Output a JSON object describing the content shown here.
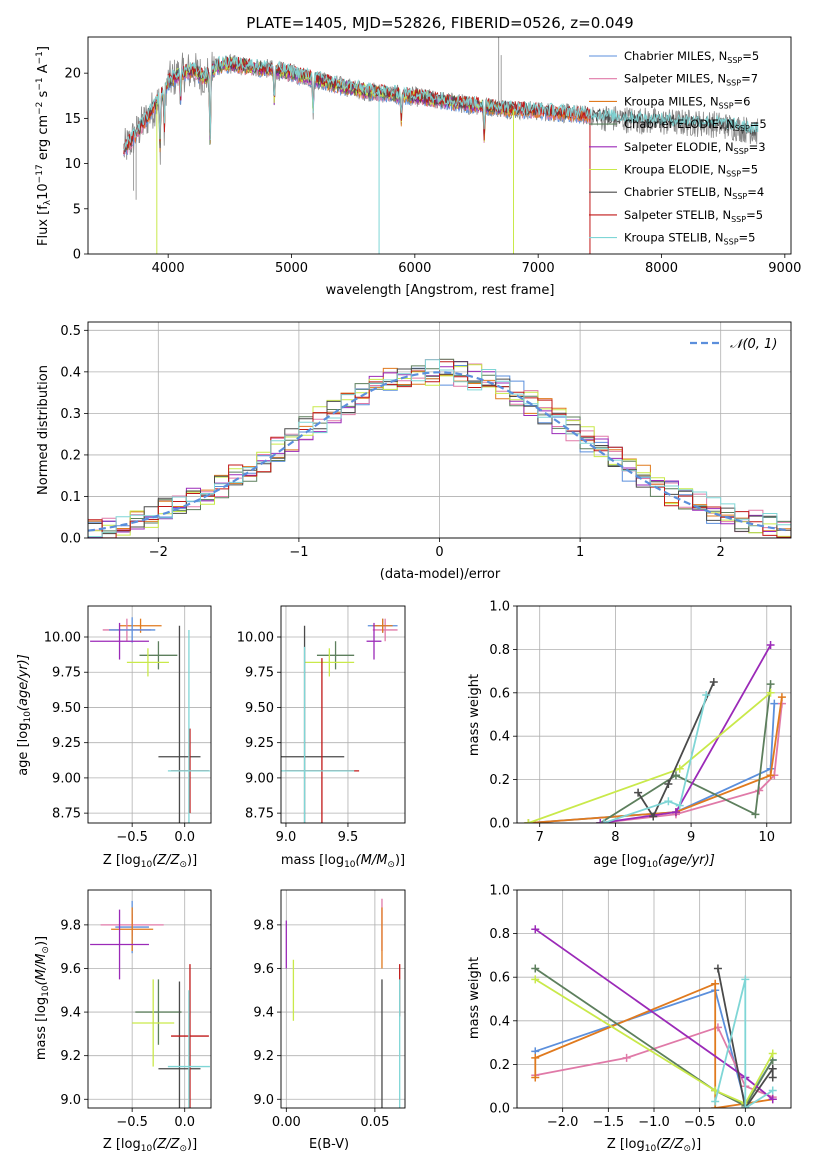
{
  "colors": {
    "chabrier_miles": "#5b8fdc",
    "salpeter_miles": "#e07aa8",
    "kroupa_miles": "#e07a1e",
    "chabrier_elodie": "#5d7f5d",
    "salpeter_elodie": "#9b2ab8",
    "kroupa_elodie": "#c9e94a",
    "chabrier_stelib": "#4a4a4a",
    "salpeter_stelib": "#c01818",
    "kroupa_stelib": "#7fd6d6",
    "data": "#888888",
    "gauss": "#5b8fdc"
  },
  "chart_data": [
    {
      "id": "spectrum",
      "type": "line",
      "title": "PLATE=1405, MJD=52826, FIBERID=0526, z=0.049",
      "xlabel": "wavelength [Angstrom, rest frame]",
      "ylabel_main": "Flux [f",
      "ylabel_sub1": "λ",
      "ylabel_mid": "10",
      "ylabel_sup1": "−17",
      "ylabel_mid2": " erg cm",
      "ylabel_sup2": "−2",
      "ylabel_mid3": " s",
      "ylabel_sup3": "−1",
      "ylabel_mid4": " A",
      "ylabel_sup4": "−1",
      "ylabel_end": "]",
      "xlim": [
        3350,
        9050
      ],
      "ylim": [
        0,
        24
      ],
      "xticks": [
        "4000",
        "5000",
        "6000",
        "7000",
        "8000",
        "9000"
      ],
      "xtick_values": [
        4000,
        5000,
        6000,
        7000,
        8000,
        9000
      ],
      "yticks": [
        "0",
        "5",
        "10",
        "15",
        "20"
      ],
      "ytick_values": [
        0,
        5,
        10,
        15,
        20
      ],
      "continuum": {
        "x": [
          3640,
          3700,
          3800,
          3900,
          4000,
          4100,
          4200,
          4300,
          4400,
          4500,
          4600,
          4800,
          5000,
          5200,
          5400,
          5600,
          5800,
          6000,
          6200,
          6400,
          6600,
          6800,
          7000,
          7200,
          7400,
          7600,
          7800,
          8000,
          8200,
          8400,
          8600,
          8780
        ],
        "y": [
          11.5,
          12.5,
          14.5,
          16.5,
          19.0,
          20.0,
          20.3,
          19.5,
          20.8,
          21.0,
          20.8,
          20.5,
          20.0,
          19.3,
          18.6,
          18.0,
          17.7,
          17.4,
          17.0,
          16.6,
          16.3,
          16.0,
          15.8,
          15.6,
          15.3,
          15.0,
          14.8,
          14.6,
          14.5,
          14.4,
          14.0,
          13.5
        ]
      },
      "legend": [
        {
          "text": "Chabrier MILES, N",
          "sub": "SSP",
          "tail": "=5",
          "color_key": "chabrier_miles"
        },
        {
          "text": "Salpeter MILES, N",
          "sub": "SSP",
          "tail": "=7",
          "color_key": "salpeter_miles"
        },
        {
          "text": "Kroupa MILES, N",
          "sub": "SSP",
          "tail": "=6",
          "color_key": "kroupa_miles"
        },
        {
          "text": "Chabrier ELODIE, N",
          "sub": "SSP",
          "tail": "=5",
          "color_key": "chabrier_elodie"
        },
        {
          "text": "Salpeter ELODIE, N",
          "sub": "SSP",
          "tail": "=3",
          "color_key": "salpeter_elodie"
        },
        {
          "text": "Kroupa ELODIE, N",
          "sub": "SSP",
          "tail": "=5",
          "color_key": "kroupa_elodie"
        },
        {
          "text": "Chabrier STELIB, N",
          "sub": "SSP",
          "tail": "=4",
          "color_key": "chabrier_stelib"
        },
        {
          "text": "Salpeter STELIB, N",
          "sub": "SSP",
          "tail": "=5",
          "color_key": "salpeter_stelib"
        },
        {
          "text": "Kroupa STELIB, N",
          "sub": "SSP",
          "tail": "=5",
          "color_key": "kroupa_stelib"
        }
      ]
    },
    {
      "id": "residuals",
      "type": "bar",
      "xlabel": "(data-model)/error",
      "ylabel": "Normed distribution",
      "xlim": [
        -2.5,
        2.5
      ],
      "ylim": [
        0,
        0.52
      ],
      "xticks": [
        "−2",
        "−1",
        "0",
        "1",
        "2"
      ],
      "xtick_values": [
        -2,
        -1,
        0,
        1,
        2
      ],
      "yticks": [
        "0.0",
        "0.1",
        "0.2",
        "0.3",
        "0.4",
        "0.5"
      ],
      "ytick_values": [
        0,
        0.1,
        0.2,
        0.3,
        0.4,
        0.5
      ],
      "grid": true,
      "legend_label": "𝒩(0, 1)",
      "bin_width": 0.1
    },
    {
      "id": "age_vs_Z",
      "type": "scatter",
      "xlabel": "Z [log",
      "xlabel_sub": "10",
      "xlabel_tail": "(Z/Z",
      "xlabel_sun": "⊙",
      "xlabel_end": ")]",
      "ylabel": "age  [log",
      "ylabel_sub": "10",
      "ylabel_tail": "(age/yr)]",
      "xlim": [
        -0.92,
        0.25
      ],
      "ylim": [
        8.68,
        10.22
      ],
      "xticks": [
        "−0.5",
        "0.0"
      ],
      "xtick_values": [
        -0.5,
        0.0
      ],
      "yticks": [
        "8.75",
        "9.00",
        "9.25",
        "9.50",
        "9.75",
        "10.00"
      ],
      "ytick_values": [
        8.75,
        9.0,
        9.25,
        9.5,
        9.75,
        10.0
      ],
      "points": [
        {
          "x": -0.42,
          "y": 10.08,
          "xe": 0.2,
          "ye": 0.05,
          "color_key": "kroupa_miles"
        },
        {
          "x": -0.55,
          "y": 10.05,
          "xe": 0.23,
          "ye": 0.08,
          "color_key": "salpeter_miles"
        },
        {
          "x": -0.5,
          "y": 10.05,
          "xe": 0.22,
          "ye": 0.09,
          "color_key": "chabrier_miles"
        },
        {
          "x": -0.62,
          "y": 9.97,
          "xe": 0.28,
          "ye": 0.13,
          "color_key": "salpeter_elodie"
        },
        {
          "x": -0.25,
          "y": 9.87,
          "xe": 0.18,
          "ye": 0.1,
          "color_key": "chabrier_elodie"
        },
        {
          "x": -0.35,
          "y": 9.82,
          "xe": 0.2,
          "ye": 0.1,
          "color_key": "kroupa_elodie"
        },
        {
          "x": -0.05,
          "y": 9.15,
          "xe": 0.2,
          "ye": 0.93,
          "color_key": "chabrier_stelib"
        },
        {
          "x": 0.05,
          "y": 9.05,
          "xe": 0.18,
          "ye": 0.3,
          "color_key": "salpeter_stelib"
        },
        {
          "x": 0.04,
          "y": 9.05,
          "xe": 0.2,
          "ye": 1.0,
          "color_key": "kroupa_stelib"
        }
      ]
    },
    {
      "id": "age_vs_mass",
      "type": "scatter",
      "xlabel": "mass [log",
      "xlabel_sub": "10",
      "xlabel_tail": "(M/M",
      "xlabel_sun": "⊙",
      "xlabel_end": ")]",
      "xlim": [
        8.96,
        9.96
      ],
      "ylim": [
        8.68,
        10.22
      ],
      "xticks": [
        "9.0",
        "9.5"
      ],
      "xtick_values": [
        9.0,
        9.5
      ],
      "yticks": [
        "8.75",
        "9.00",
        "9.25",
        "9.50",
        "9.75",
        "10.00"
      ],
      "ytick_values": [
        8.75,
        9.0,
        9.25,
        9.5,
        9.75,
        10.0
      ],
      "points": [
        {
          "x": 9.78,
          "y": 10.08,
          "xe": 0.12,
          "ye": 0.05,
          "color_key": "chabrier_miles"
        },
        {
          "x": 9.8,
          "y": 10.05,
          "xe": 0.1,
          "ye": 0.08,
          "color_key": "salpeter_miles"
        },
        {
          "x": 9.78,
          "y": 10.08,
          "xe": 0.08,
          "ye": 0.05,
          "color_key": "kroupa_miles"
        },
        {
          "x": 9.71,
          "y": 9.97,
          "xe": 0.06,
          "ye": 0.13,
          "color_key": "salpeter_elodie"
        },
        {
          "x": 9.4,
          "y": 9.87,
          "xe": 0.15,
          "ye": 0.1,
          "color_key": "chabrier_elodie"
        },
        {
          "x": 9.35,
          "y": 9.82,
          "xe": 0.2,
          "ye": 0.1,
          "color_key": "kroupa_elodie"
        },
        {
          "x": 9.15,
          "y": 9.15,
          "xe": 0.32,
          "ye": 0.93,
          "color_key": "chabrier_stelib"
        },
        {
          "x": 9.29,
          "y": 9.05,
          "xe": 0.3,
          "ye": 0.8,
          "color_key": "salpeter_stelib"
        },
        {
          "x": 9.15,
          "y": 9.05,
          "xe": 0.4,
          "ye": 0.88,
          "color_key": "kroupa_stelib"
        }
      ]
    },
    {
      "id": "weight_vs_age",
      "type": "line",
      "xlabel": "age  [log",
      "xlabel_sub": "10",
      "xlabel_tail": "(age/yr)]",
      "ylabel": "mass weight",
      "xlim": [
        6.7,
        10.32
      ],
      "ylim": [
        0,
        1
      ],
      "xticks": [
        "7",
        "8",
        "9",
        "10"
      ],
      "xtick_values": [
        7,
        8,
        9,
        10
      ],
      "yticks": [
        "0.0",
        "0.2",
        "0.4",
        "0.6",
        "0.8",
        "1.0"
      ],
      "ytick_values": [
        0,
        0.2,
        0.4,
        0.6,
        0.8,
        1.0
      ],
      "series": [
        {
          "color_key": "chabrier_miles",
          "x": [
            6.85,
            8.8,
            10.05,
            10.1
          ],
          "y": [
            0.0,
            0.05,
            0.25,
            0.55
          ]
        },
        {
          "color_key": "salpeter_miles",
          "x": [
            7.8,
            8.8,
            9.9,
            10.1,
            10.2
          ],
          "y": [
            0.0,
            0.04,
            0.15,
            0.22,
            0.55
          ]
        },
        {
          "color_key": "kroupa_miles",
          "x": [
            6.85,
            8.8,
            10.05,
            10.2
          ],
          "y": [
            0.0,
            0.05,
            0.22,
            0.58
          ]
        },
        {
          "color_key": "chabrier_elodie",
          "x": [
            7.8,
            8.8,
            9.85,
            10.05
          ],
          "y": [
            0.0,
            0.22,
            0.04,
            0.64
          ]
        },
        {
          "color_key": "salpeter_elodie",
          "x": [
            7.8,
            8.8,
            10.05
          ],
          "y": [
            0.0,
            0.05,
            0.82
          ]
        },
        {
          "color_key": "kroupa_elodie",
          "x": [
            6.85,
            8.85,
            10.05
          ],
          "y": [
            0.0,
            0.25,
            0.6
          ]
        },
        {
          "color_key": "chabrier_stelib",
          "x": [
            8.3,
            8.5,
            8.7,
            9.3
          ],
          "y": [
            0.14,
            0.03,
            0.18,
            0.65
          ]
        },
        {
          "color_key": "kroupa_stelib",
          "x": [
            7.85,
            8.7,
            8.85,
            9.2
          ],
          "y": [
            0.0,
            0.1,
            0.08,
            0.59
          ]
        }
      ]
    },
    {
      "id": "mass_vs_Z",
      "type": "scatter",
      "xlabel": "Z [log",
      "xlabel_sub": "10",
      "xlabel_tail": "(Z/Z",
      "xlabel_sun": "⊙",
      "xlabel_end": ")]",
      "ylabel": "mass [log",
      "ylabel_sub": "10",
      "ylabel_tail": "(M/M",
      "ylabel_sun": "⊙",
      "ylabel_end": ")]",
      "xlim": [
        -0.92,
        0.25
      ],
      "ylim": [
        8.96,
        9.96
      ],
      "xticks": [
        "−0.5",
        "0.0"
      ],
      "xtick_values": [
        -0.5,
        0.0
      ],
      "yticks": [
        "9.0",
        "9.2",
        "9.4",
        "9.6",
        "9.8"
      ],
      "ytick_values": [
        9.0,
        9.2,
        9.4,
        9.6,
        9.8
      ],
      "points": [
        {
          "x": -0.5,
          "y": 9.79,
          "xe": 0.16,
          "ye": 0.12,
          "color_key": "chabrier_miles"
        },
        {
          "x": -0.5,
          "y": 9.8,
          "xe": 0.3,
          "ye": 0.05,
          "color_key": "salpeter_miles"
        },
        {
          "x": -0.5,
          "y": 9.78,
          "xe": 0.2,
          "ye": 0.1,
          "color_key": "kroupa_miles"
        },
        {
          "x": -0.62,
          "y": 9.71,
          "xe": 0.28,
          "ye": 0.16,
          "color_key": "salpeter_elodie"
        },
        {
          "x": -0.25,
          "y": 9.4,
          "xe": 0.22,
          "ye": 0.15,
          "color_key": "chabrier_elodie"
        },
        {
          "x": -0.3,
          "y": 9.35,
          "xe": 0.2,
          "ye": 0.2,
          "color_key": "kroupa_elodie"
        },
        {
          "x": -0.05,
          "y": 9.14,
          "xe": 0.2,
          "ye": 0.4,
          "color_key": "chabrier_stelib"
        },
        {
          "x": 0.05,
          "y": 9.29,
          "xe": 0.18,
          "ye": 0.33,
          "color_key": "salpeter_stelib"
        },
        {
          "x": 0.04,
          "y": 9.15,
          "xe": 0.2,
          "ye": 0.35,
          "color_key": "kroupa_stelib"
        }
      ]
    },
    {
      "id": "mass_vs_ebv",
      "type": "scatter",
      "xlabel": "E(B-V)",
      "xlim": [
        -0.003,
        0.067
      ],
      "ylim": [
        8.96,
        9.96
      ],
      "xticks": [
        "0.00",
        "0.05"
      ],
      "xtick_values": [
        0.0,
        0.05
      ],
      "yticks": [
        "9.0",
        "9.2",
        "9.4",
        "9.6",
        "9.8"
      ],
      "ytick_values": [
        9.0,
        9.2,
        9.4,
        9.6,
        9.8
      ],
      "points": [
        {
          "x": 0.0,
          "y": 9.71,
          "xe": 0,
          "ye": 0.11,
          "color_key": "salpeter_elodie"
        },
        {
          "x": 0.004,
          "y": 9.5,
          "xe": 0,
          "ye": 0.14,
          "color_key": "kroupa_elodie"
        },
        {
          "x": 0.054,
          "y": 9.8,
          "xe": 0,
          "ye": 0.12,
          "color_key": "salpeter_miles"
        },
        {
          "x": 0.054,
          "y": 9.74,
          "xe": 0,
          "ye": 0.14,
          "color_key": "kroupa_miles"
        },
        {
          "x": 0.054,
          "y": 9.2,
          "xe": 0,
          "ye": 0.35,
          "color_key": "chabrier_stelib"
        },
        {
          "x": 0.064,
          "y": 9.5,
          "xe": 0,
          "ye": 0.12,
          "color_key": "salpeter_stelib"
        },
        {
          "x": 0.064,
          "y": 9.15,
          "xe": 0,
          "ye": 0.4,
          "color_key": "kroupa_stelib"
        }
      ]
    },
    {
      "id": "weight_vs_Z",
      "type": "line",
      "xlabel": "Z [log",
      "xlabel_sub": "10",
      "xlabel_tail": "(Z/Z",
      "xlabel_sun": "⊙",
      "xlabel_end": ")]",
      "ylabel": "mass weight",
      "xlim": [
        -2.5,
        0.5
      ],
      "ylim": [
        0,
        1
      ],
      "xticks": [
        "−2.0",
        "−1.5",
        "−1.0",
        "−0.5",
        "0.0"
      ],
      "xtick_values": [
        -2.0,
        -1.5,
        -1.0,
        -0.5,
        0.0
      ],
      "yticks": [
        "0.0",
        "0.2",
        "0.4",
        "0.6",
        "0.8",
        "1.0"
      ],
      "ytick_values": [
        0,
        0.2,
        0.4,
        0.6,
        0.8,
        1.0
      ],
      "series": [
        {
          "color_key": "chabrier_miles",
          "x": [
            -2.3,
            -0.33,
            0.0,
            0.3
          ],
          "y": [
            0.26,
            0.54,
            0.02,
            0.22
          ]
        },
        {
          "color_key": "salpeter_miles",
          "x": [
            -2.3,
            -1.3,
            -0.3,
            0.0,
            0.3
          ],
          "y": [
            0.15,
            0.23,
            0.37,
            0.1,
            0.05
          ]
        },
        {
          "color_key": "kroupa_miles",
          "x": [
            -2.3,
            -2.3,
            -0.33,
            -0.33,
            0.0,
            0.3
          ],
          "y": [
            0.14,
            0.23,
            0.57,
            0.0,
            0.02,
            0.04
          ]
        },
        {
          "color_key": "chabrier_elodie",
          "x": [
            -2.3,
            -0.33,
            0.0,
            0.3
          ],
          "y": [
            0.64,
            0.08,
            0.01,
            0.22
          ]
        },
        {
          "color_key": "salpeter_elodie",
          "x": [
            -2.3,
            0.0,
            0.3
          ],
          "y": [
            0.82,
            0.14,
            0.04
          ]
        },
        {
          "color_key": "kroupa_elodie",
          "x": [
            -2.3,
            -0.33,
            0.0,
            0.3
          ],
          "y": [
            0.59,
            0.08,
            0.02,
            0.25
          ]
        },
        {
          "color_key": "chabrier_stelib",
          "x": [
            -0.3,
            0.0,
            0.3,
            0.3
          ],
          "y": [
            0.64,
            0.0,
            0.18,
            0.14
          ]
        },
        {
          "color_key": "kroupa_stelib",
          "x": [
            -0.33,
            0.0,
            0.0,
            0.3
          ],
          "y": [
            0.03,
            0.59,
            0.0,
            0.08
          ]
        }
      ]
    }
  ]
}
